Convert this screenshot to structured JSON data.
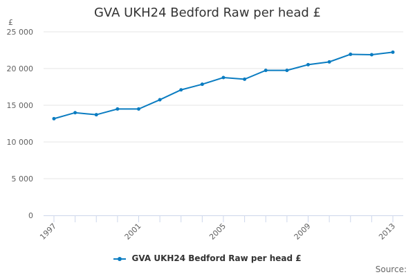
{
  "chart_data": {
    "type": "line",
    "title": "GVA UKH24 Bedford Raw per head £",
    "ylabel": "£",
    "xlabel": "",
    "x": [
      1997,
      1998,
      1999,
      2000,
      2001,
      2002,
      2003,
      2004,
      2005,
      2006,
      2007,
      2008,
      2009,
      2010,
      2011,
      2012,
      2013
    ],
    "series": [
      {
        "name": "GVA UKH24 Bedford Raw per head £",
        "values": [
          13170,
          13990,
          13710,
          14490,
          14490,
          15750,
          17100,
          17860,
          18770,
          18550,
          19750,
          19750,
          20530,
          20910,
          21940,
          21890,
          22230
        ],
        "color": "#0a7cc1"
      }
    ],
    "xticks": [
      "1997",
      "2001",
      "2005",
      "2009",
      "2013"
    ],
    "yticks": [
      "0",
      "5 000",
      "10 000",
      "15 000",
      "20 000",
      "25 000"
    ],
    "ylim": [
      0,
      25000
    ],
    "xlim": [
      1997,
      2013
    ],
    "grid": true,
    "legend": "bottom"
  },
  "source_label": "Source:"
}
